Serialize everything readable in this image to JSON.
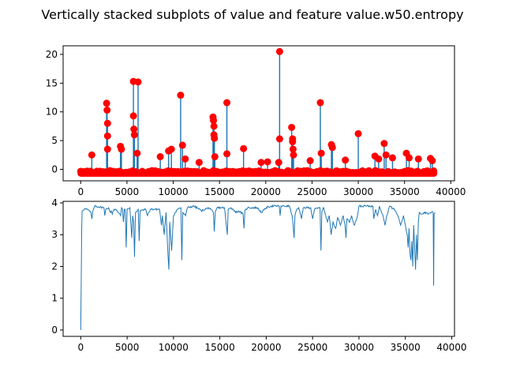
{
  "figure_title": "Vertically stacked subplots of value and feature value.w50.entropy",
  "colors": {
    "line": "#1f77b4",
    "marker": "#ff0000",
    "background": "#ffffff",
    "axis": "#000000"
  },
  "chart_data": [
    {
      "type": "line",
      "subplot": "top",
      "title": "",
      "xlabel": "",
      "ylabel": "",
      "xlim": [
        -1900,
        40400
      ],
      "ylim": [
        -2.0,
        21.5
      ],
      "xticks": [
        0,
        5000,
        10000,
        15000,
        20000,
        25000,
        30000,
        35000,
        40000
      ],
      "xtick_labels": [
        "0",
        "5000",
        "10000",
        "15000",
        "20000",
        "25000",
        "30000",
        "35000",
        "40000"
      ],
      "yticks": [
        0,
        5,
        10,
        15,
        20
      ],
      "ytick_labels": [
        "0",
        "5",
        "10",
        "15",
        "20"
      ],
      "baseline": -0.6,
      "x_range": [
        0,
        38200
      ],
      "series": [
        {
          "kind": "line",
          "description": "value",
          "spikes": [
            {
              "x": 1200,
              "y": 2.5
            },
            {
              "x": 2800,
              "y": 11.5
            },
            {
              "x": 2850,
              "y": 10.3
            },
            {
              "x": 2900,
              "y": 8.0
            },
            {
              "x": 2900,
              "y": 5.8
            },
            {
              "x": 2900,
              "y": 3.5
            },
            {
              "x": 4300,
              "y": 4.0
            },
            {
              "x": 4400,
              "y": 3.5
            },
            {
              "x": 5700,
              "y": 15.3
            },
            {
              "x": 5700,
              "y": 9.3
            },
            {
              "x": 5750,
              "y": 7.0
            },
            {
              "x": 5800,
              "y": 6.0
            },
            {
              "x": 6200,
              "y": 15.2
            },
            {
              "x": 6100,
              "y": 2.8
            },
            {
              "x": 8600,
              "y": 2.2
            },
            {
              "x": 9500,
              "y": 3.2
            },
            {
              "x": 9800,
              "y": 3.5
            },
            {
              "x": 10800,
              "y": 12.9
            },
            {
              "x": 11000,
              "y": 4.2
            },
            {
              "x": 11300,
              "y": 1.8
            },
            {
              "x": 12800,
              "y": 1.2
            },
            {
              "x": 14300,
              "y": 9.1
            },
            {
              "x": 14350,
              "y": 8.5
            },
            {
              "x": 14400,
              "y": 7.5
            },
            {
              "x": 14400,
              "y": 6.0
            },
            {
              "x": 14450,
              "y": 5.4
            },
            {
              "x": 14500,
              "y": 2.2
            },
            {
              "x": 15800,
              "y": 11.6
            },
            {
              "x": 15800,
              "y": 2.7
            },
            {
              "x": 17600,
              "y": 3.6
            },
            {
              "x": 19500,
              "y": 1.2
            },
            {
              "x": 20200,
              "y": 1.3
            },
            {
              "x": 21500,
              "y": 20.5
            },
            {
              "x": 21500,
              "y": 5.3
            },
            {
              "x": 21400,
              "y": 1.2
            },
            {
              "x": 22800,
              "y": 7.3
            },
            {
              "x": 22900,
              "y": 5.3
            },
            {
              "x": 22900,
              "y": 4.8
            },
            {
              "x": 22950,
              "y": 3.5
            },
            {
              "x": 23000,
              "y": 2.5
            },
            {
              "x": 24800,
              "y": 1.5
            },
            {
              "x": 25900,
              "y": 11.6
            },
            {
              "x": 26000,
              "y": 2.8
            },
            {
              "x": 27100,
              "y": 4.3
            },
            {
              "x": 27200,
              "y": 3.8
            },
            {
              "x": 28600,
              "y": 1.6
            },
            {
              "x": 30000,
              "y": 6.2
            },
            {
              "x": 31800,
              "y": 2.3
            },
            {
              "x": 32200,
              "y": 1.8
            },
            {
              "x": 32800,
              "y": 4.5
            },
            {
              "x": 33000,
              "y": 2.5
            },
            {
              "x": 33700,
              "y": 2.0
            },
            {
              "x": 35200,
              "y": 2.8
            },
            {
              "x": 35500,
              "y": 2.0
            },
            {
              "x": 36500,
              "y": 1.8
            },
            {
              "x": 37800,
              "y": 1.9
            },
            {
              "x": 38000,
              "y": 1.5
            }
          ]
        },
        {
          "kind": "scatter",
          "description": "red markers on value"
        }
      ]
    },
    {
      "type": "line",
      "subplot": "bottom",
      "title": "",
      "xlabel": "",
      "ylabel": "",
      "xlim": [
        -1900,
        40300
      ],
      "ylim": [
        -0.2,
        4.05
      ],
      "xticks": [
        0,
        5000,
        10000,
        15000,
        20000,
        25000,
        30000,
        35000,
        40000
      ],
      "xtick_labels": [
        "0",
        "5000",
        "10000",
        "15000",
        "20000",
        "25000",
        "30000",
        "35000",
        "40000"
      ],
      "yticks": [
        0,
        1,
        2,
        3,
        4
      ],
      "ytick_labels": [
        "0",
        "1",
        "2",
        "3",
        "4"
      ],
      "series": [
        {
          "kind": "line",
          "description": "value.w50.entropy",
          "points": [
            [
              0,
              0.0
            ],
            [
              50,
              1.5
            ],
            [
              100,
              3.1
            ],
            [
              150,
              3.75
            ],
            [
              400,
              3.82
            ],
            [
              800,
              3.78
            ],
            [
              1100,
              3.7
            ],
            [
              1200,
              3.5
            ],
            [
              1350,
              3.8
            ],
            [
              1500,
              3.9
            ],
            [
              2500,
              3.85
            ],
            [
              2600,
              3.6
            ],
            [
              2700,
              3.8
            ],
            [
              3000,
              3.85
            ],
            [
              3200,
              3.7
            ],
            [
              3300,
              3.75
            ],
            [
              3400,
              3.65
            ],
            [
              3600,
              3.8
            ],
            [
              3800,
              3.8
            ],
            [
              4300,
              3.6
            ],
            [
              4400,
              3.85
            ],
            [
              4500,
              3.8
            ],
            [
              4600,
              3.4
            ],
            [
              4700,
              3.8
            ],
            [
              4800,
              3.8
            ],
            [
              4900,
              2.6
            ],
            [
              5000,
              3.8
            ],
            [
              5300,
              3.85
            ],
            [
              5500,
              2.9
            ],
            [
              5600,
              3.6
            ],
            [
              5700,
              3.4
            ],
            [
              5800,
              2.3
            ],
            [
              5900,
              3.7
            ],
            [
              6200,
              3.8
            ],
            [
              6300,
              2.8
            ],
            [
              6400,
              3.75
            ],
            [
              7000,
              3.8
            ],
            [
              7200,
              3.6
            ],
            [
              7500,
              3.8
            ],
            [
              8500,
              3.8
            ],
            [
              8700,
              3.3
            ],
            [
              8800,
              3.6
            ],
            [
              9000,
              3.0
            ],
            [
              9200,
              3.7
            ],
            [
              9400,
              2.4
            ],
            [
              9500,
              1.9
            ],
            [
              9600,
              3.4
            ],
            [
              9800,
              2.5
            ],
            [
              10000,
              3.6
            ],
            [
              10200,
              3.7
            ],
            [
              10400,
              3.8
            ],
            [
              10800,
              3.85
            ],
            [
              10900,
              2.2
            ],
            [
              11000,
              3.7
            ],
            [
              11300,
              3.6
            ],
            [
              11500,
              3.85
            ],
            [
              12200,
              3.9
            ],
            [
              12800,
              3.8
            ],
            [
              13000,
              3.75
            ],
            [
              13800,
              3.85
            ],
            [
              14300,
              3.7
            ],
            [
              14400,
              3.1
            ],
            [
              14500,
              3.7
            ],
            [
              14700,
              3.85
            ],
            [
              15500,
              3.85
            ],
            [
              15800,
              3.0
            ],
            [
              15900,
              3.8
            ],
            [
              16200,
              3.85
            ],
            [
              16800,
              3.7
            ],
            [
              17000,
              3.75
            ],
            [
              17500,
              3.65
            ],
            [
              17600,
              3.2
            ],
            [
              17700,
              3.75
            ],
            [
              18000,
              3.85
            ],
            [
              19000,
              3.85
            ],
            [
              19500,
              3.7
            ],
            [
              20000,
              3.85
            ],
            [
              20500,
              3.9
            ],
            [
              21400,
              3.9
            ],
            [
              21500,
              3.6
            ],
            [
              21600,
              3.9
            ],
            [
              22500,
              3.9
            ],
            [
              22800,
              3.6
            ],
            [
              22900,
              3.3
            ],
            [
              23000,
              2.9
            ],
            [
              23100,
              3.6
            ],
            [
              23300,
              3.8
            ],
            [
              23500,
              3.85
            ],
            [
              23800,
              3.5
            ],
            [
              24000,
              3.85
            ],
            [
              24800,
              3.85
            ],
            [
              25000,
              3.5
            ],
            [
              25200,
              3.8
            ],
            [
              25800,
              3.85
            ],
            [
              25900,
              2.5
            ],
            [
              26000,
              3.75
            ],
            [
              26200,
              3.85
            ],
            [
              26600,
              3.4
            ],
            [
              26800,
              3.6
            ],
            [
              27000,
              3.0
            ],
            [
              27200,
              3.4
            ],
            [
              27500,
              3.2
            ],
            [
              27700,
              3.55
            ],
            [
              28000,
              3.3
            ],
            [
              28300,
              3.6
            ],
            [
              28500,
              3.3
            ],
            [
              28600,
              2.9
            ],
            [
              28700,
              3.5
            ],
            [
              29000,
              3.4
            ],
            [
              29200,
              3.6
            ],
            [
              29500,
              3.3
            ],
            [
              29800,
              3.55
            ],
            [
              30000,
              3.9
            ],
            [
              30500,
              3.9
            ],
            [
              31000,
              3.9
            ],
            [
              31500,
              3.9
            ],
            [
              31600,
              3.5
            ],
            [
              31800,
              3.8
            ],
            [
              32000,
              3.6
            ],
            [
              32200,
              3.9
            ],
            [
              32600,
              3.6
            ],
            [
              32800,
              3.3
            ],
            [
              33000,
              3.6
            ],
            [
              33300,
              3.9
            ],
            [
              33800,
              3.8
            ],
            [
              34200,
              3.6
            ],
            [
              34500,
              3.3
            ],
            [
              34800,
              3.6
            ],
            [
              35000,
              3.3
            ],
            [
              35200,
              3.0
            ],
            [
              35300,
              2.6
            ],
            [
              35400,
              3.2
            ],
            [
              35500,
              2.4
            ],
            [
              35600,
              2.2
            ],
            [
              35700,
              2.8
            ],
            [
              35800,
              2.0
            ],
            [
              35900,
              3.3
            ],
            [
              36000,
              2.6
            ],
            [
              36100,
              1.9
            ],
            [
              36200,
              3.0
            ],
            [
              36300,
              2.2
            ],
            [
              36400,
              3.4
            ],
            [
              36500,
              3.7
            ],
            [
              36800,
              3.65
            ],
            [
              37000,
              3.7
            ],
            [
              37500,
              3.65
            ],
            [
              37800,
              3.7
            ],
            [
              38000,
              3.7
            ],
            [
              38050,
              1.4
            ],
            [
              38100,
              3.65
            ],
            [
              38200,
              3.7
            ]
          ]
        }
      ]
    }
  ]
}
